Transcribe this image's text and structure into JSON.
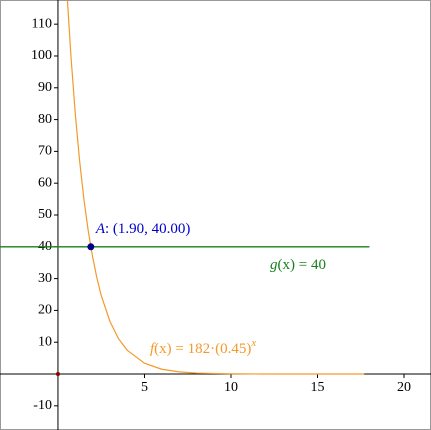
{
  "chart_data": {
    "type": "line",
    "xlim": [
      -3.35,
      21.56
    ],
    "ylim": [
      -17.6,
      117.6
    ],
    "xticks": [
      5,
      10,
      15,
      20
    ],
    "yticks": [
      -10,
      10,
      20,
      30,
      40,
      50,
      60,
      70,
      80,
      90,
      100,
      110
    ],
    "grid": false,
    "series": [
      {
        "name": "f",
        "color": "#f39a2a",
        "label_parts": [
          "f",
          "(x) = 182·(0.45)",
          "x"
        ],
        "x": [
          0.55,
          0.75,
          1,
          1.25,
          1.5,
          1.75,
          2,
          2.25,
          2.5,
          3,
          3.5,
          4,
          5,
          6,
          7,
          8,
          10,
          12,
          15,
          17.7
        ],
        "values": [
          117.3,
          100.0,
          81.9,
          67.1,
          54.9,
          45.0,
          36.9,
          30.2,
          24.7,
          16.6,
          11.1,
          7.5,
          3.4,
          1.5,
          0.68,
          0.31,
          0.06,
          0.01,
          0,
          0
        ]
      },
      {
        "name": "g",
        "color": "#1a7f1a",
        "label_parts": [
          "g",
          "(x) = 40"
        ],
        "x": [
          -3.35,
          18
        ],
        "values": [
          40,
          40
        ]
      }
    ],
    "point": {
      "name": "A",
      "label": ": (1.90, 40.00)",
      "x": 1.9,
      "y": 40,
      "color": "#00008b"
    }
  }
}
